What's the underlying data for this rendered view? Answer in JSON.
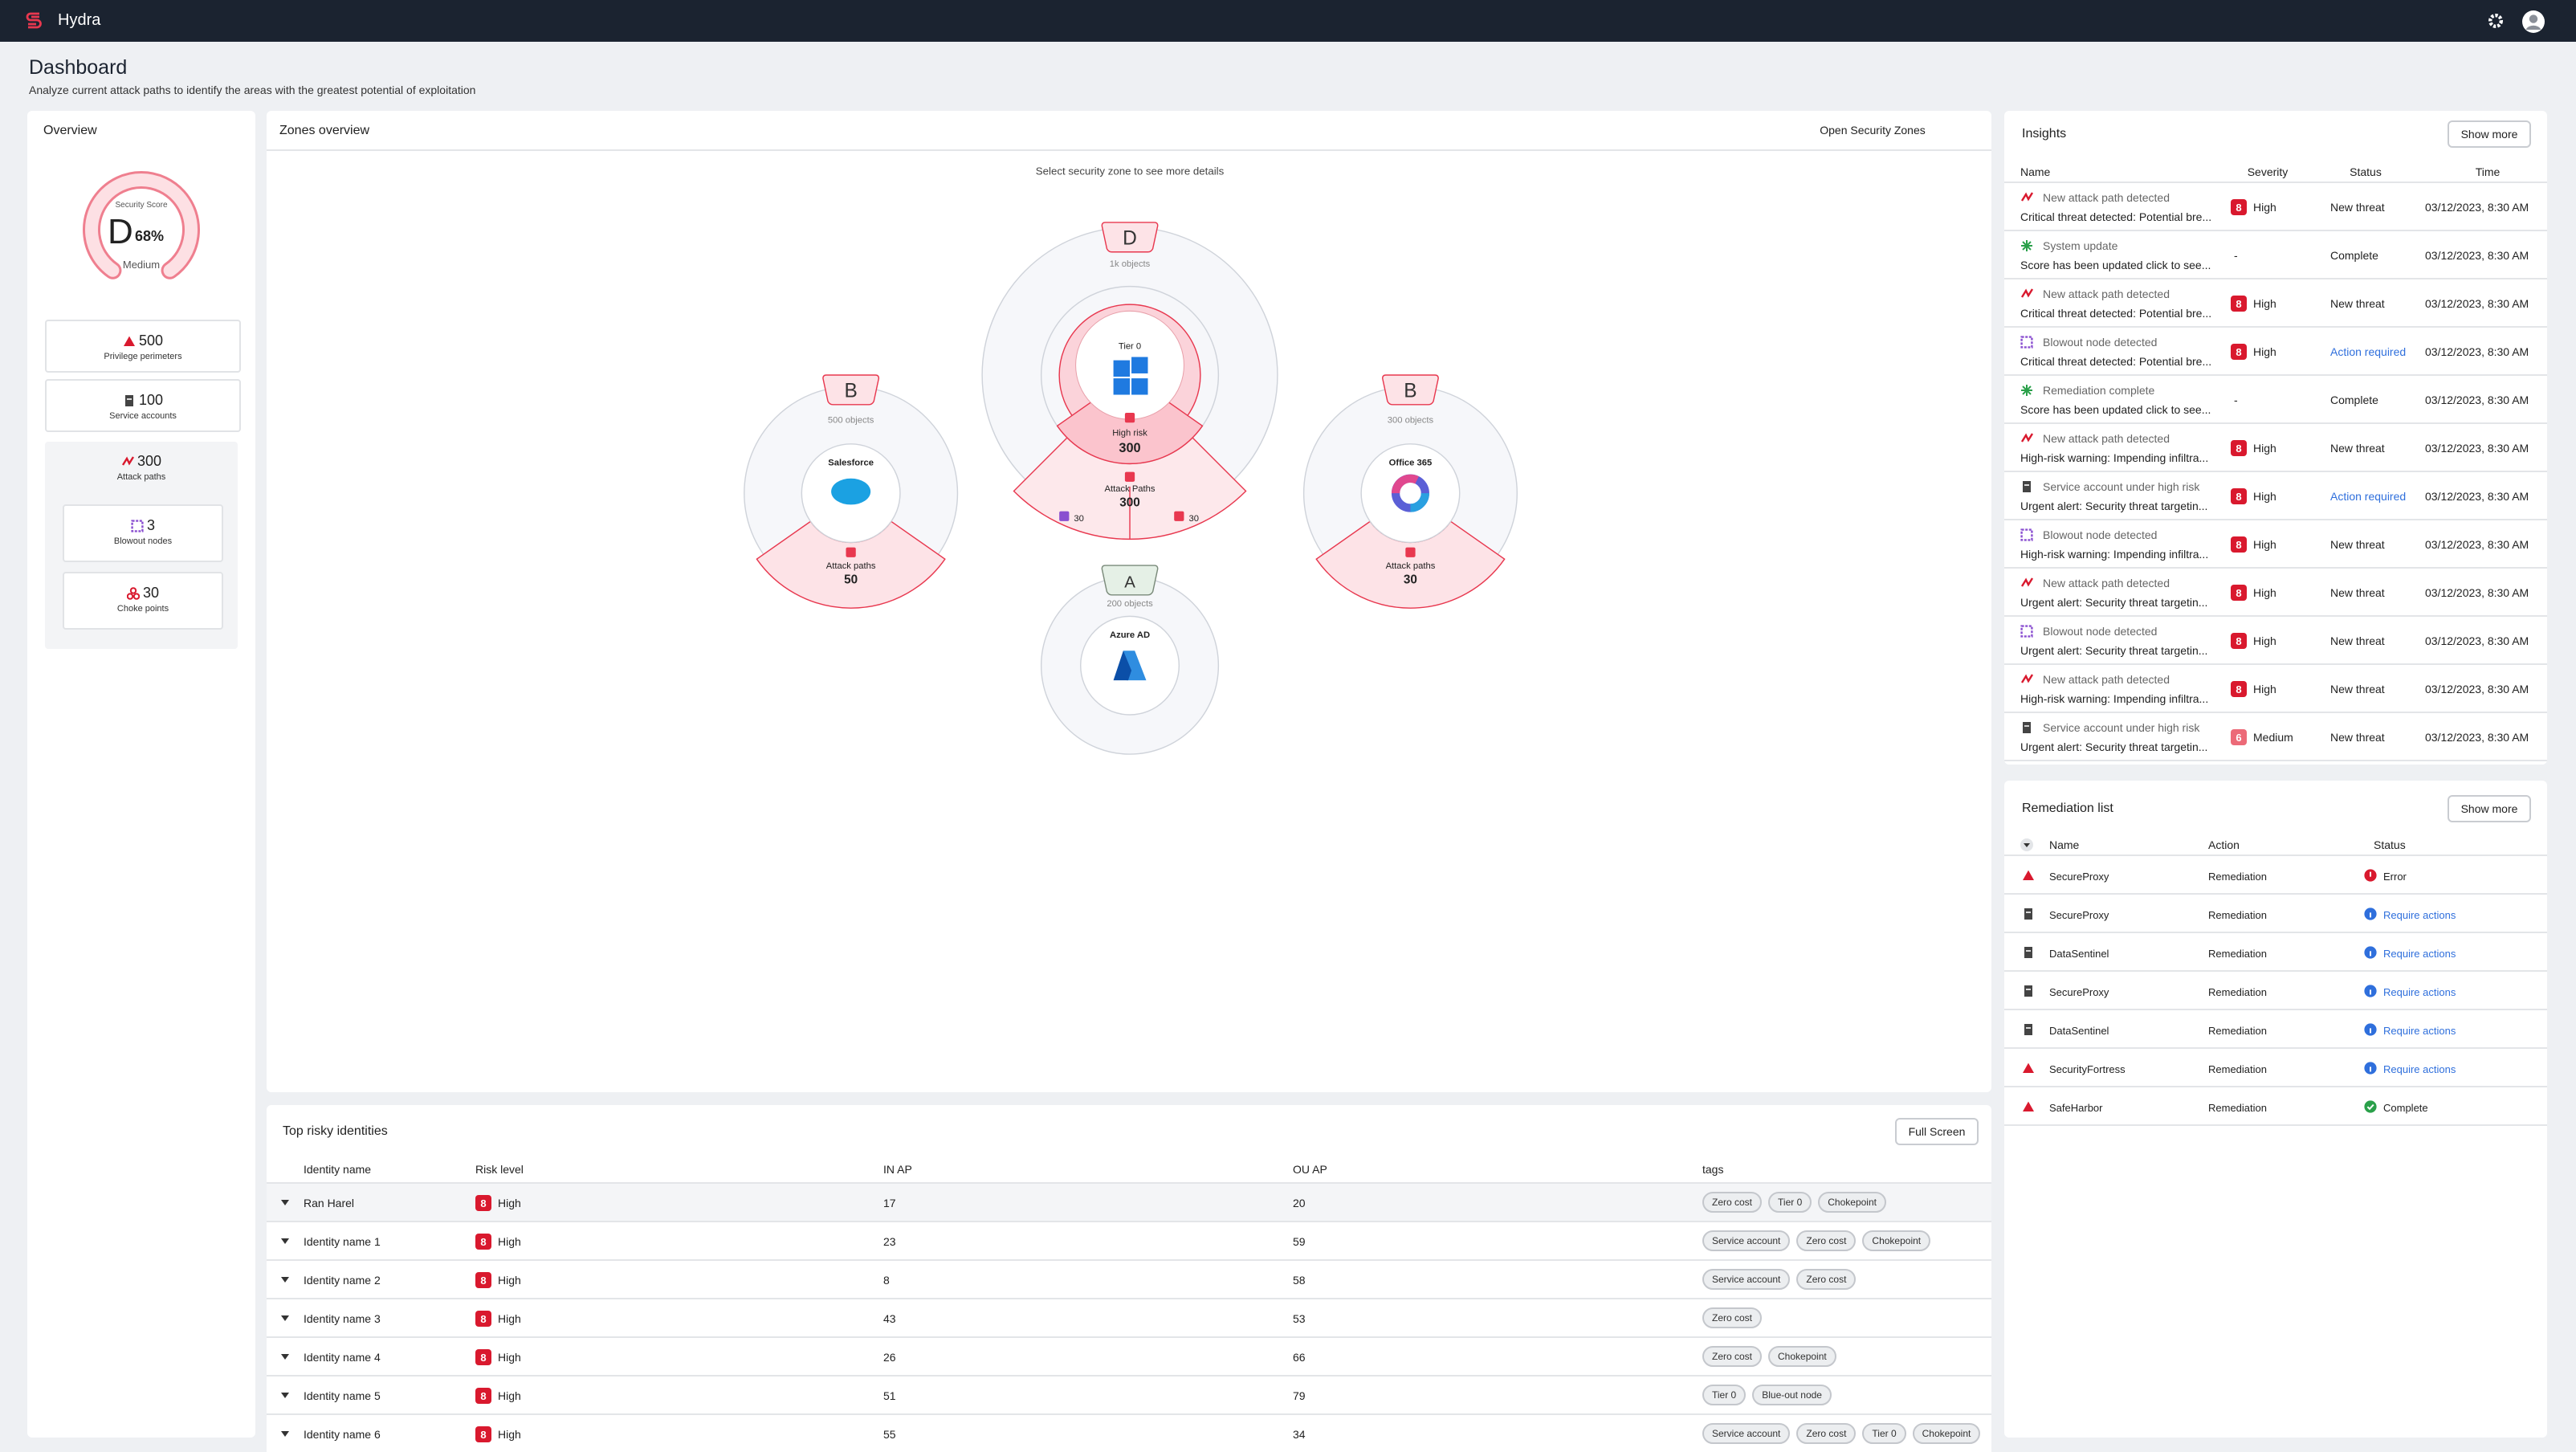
{
  "app": {
    "name": "Hydra"
  },
  "page": {
    "title": "Dashboard",
    "subtitle": "Analyze current attack paths to identify the areas with the greatest potential of exploitation"
  },
  "overview": {
    "title": "Overview",
    "score": {
      "label": "Security Score",
      "grade": "D",
      "percent": "68%",
      "level": "Medium"
    },
    "stats": [
      {
        "value": "500",
        "label": "Privilege perimeters"
      },
      {
        "value": "100",
        "label": "Service accounts"
      },
      {
        "value": "300",
        "label": "Attack paths"
      },
      {
        "value": "3",
        "label": "Blowout nodes"
      },
      {
        "value": "30",
        "label": "Choke points"
      }
    ]
  },
  "zones": {
    "title": "Zones overview",
    "action": "Open Security Zones",
    "hint": "Select security zone to see more details",
    "tier0": {
      "grade": "D",
      "objects": "1k objects",
      "name": "Tier 0",
      "risk_label": "High risk",
      "risk_value": "300",
      "paths_label": "Attack Paths",
      "paths_value": "300",
      "split": [
        "30",
        "30"
      ]
    },
    "salesforce": {
      "grade": "B",
      "objects": "500 objects",
      "name": "Salesforce",
      "paths_label": "Attack paths",
      "paths_value": "50"
    },
    "office": {
      "grade": "B",
      "objects": "300 objects",
      "name": "Office 365",
      "paths_label": "Attack paths",
      "paths_value": "30"
    },
    "azure": {
      "grade": "A",
      "objects": "200 objects",
      "name": "Azure AD"
    }
  },
  "insights": {
    "title": "Insights",
    "button": "Show more",
    "columns": [
      "Name",
      "Severity",
      "Status",
      "Time"
    ],
    "rows": [
      {
        "title": "New attack path detected",
        "description": "Critical threat detected: Potential bre...",
        "badge": "8",
        "severity": "High",
        "status": "New threat",
        "time": "03/12/2023, 8:30 AM"
      },
      {
        "title": "System update",
        "description": "Score has been updated click to see...",
        "severity": "-",
        "status": "Complete",
        "time": "03/12/2023, 8:30 AM"
      },
      {
        "title": "New attack path detected",
        "description": "Critical threat detected: Potential bre...",
        "badge": "8",
        "severity": "High",
        "status": "New threat",
        "time": "03/12/2023, 8:30 AM"
      },
      {
        "title": "Blowout node detected",
        "description": "Critical threat detected: Potential bre...",
        "badge": "8",
        "severity": "High",
        "status": "Action required",
        "time": "03/12/2023, 8:30 AM"
      },
      {
        "title": "Remediation complete",
        "description": "Score has been updated click to see...",
        "severity": "-",
        "status": "Complete",
        "time": "03/12/2023, 8:30 AM"
      },
      {
        "title": "New attack path detected",
        "description": "High-risk warning: Impending infiltra...",
        "badge": "8",
        "severity": "High",
        "status": "New threat",
        "time": "03/12/2023, 8:30 AM"
      },
      {
        "title": "Service account under high risk",
        "description": "Urgent alert: Security threat targetin...",
        "badge": "8",
        "severity": "High",
        "status": "Action required",
        "time": "03/12/2023, 8:30 AM"
      },
      {
        "title": "Blowout node detected",
        "description": "High-risk warning: Impending infiltra...",
        "badge": "8",
        "severity": "High",
        "status": "New threat",
        "time": "03/12/2023, 8:30 AM"
      },
      {
        "title": "New attack path detected",
        "description": "Urgent alert: Security threat targetin...",
        "badge": "8",
        "severity": "High",
        "status": "New threat",
        "time": "03/12/2023, 8:30 AM"
      },
      {
        "title": "Blowout node detected",
        "description": "Urgent alert: Security threat targetin...",
        "badge": "8",
        "severity": "High",
        "status": "New threat",
        "time": "03/12/2023, 8:30 AM"
      },
      {
        "title": "New attack path detected",
        "description": "High-risk warning: Impending infiltra...",
        "badge": "8",
        "severity": "High",
        "status": "New threat",
        "time": "03/12/2023, 8:30 AM"
      },
      {
        "title": "Service account under high risk",
        "description": "Urgent alert: Security threat targetin...",
        "badge": "6",
        "severity": "Medium",
        "status": "New threat",
        "time": "03/12/2023, 8:30 AM"
      }
    ]
  },
  "remediation": {
    "title": "Remediation list",
    "button": "Show more",
    "columns": [
      "Name",
      "Action",
      "Status"
    ],
    "rows": [
      {
        "name": "SecureProxy",
        "action": "Remediation",
        "status": "Error"
      },
      {
        "name": "SecureProxy",
        "action": "Remediation",
        "status": "Require actions"
      },
      {
        "name": "DataSentinel",
        "action": "Remediation",
        "status": "Require actions"
      },
      {
        "name": "SecureProxy",
        "action": "Remediation",
        "status": "Require actions"
      },
      {
        "name": "DataSentinel",
        "action": "Remediation",
        "status": "Require actions"
      },
      {
        "name": "SecurityFortress",
        "action": "Remediation",
        "status": "Require actions"
      },
      {
        "name": "SafeHarbor",
        "action": "Remediation",
        "status": "Complete"
      }
    ]
  },
  "identities": {
    "title": "Top risky identities",
    "button": "Full Screen",
    "columns": [
      "Identity name",
      "Risk level",
      "IN AP",
      "OU AP",
      "tags"
    ],
    "rows": [
      {
        "name": "Ran Harel",
        "badge": "8",
        "risk": "High",
        "in_ap": "17",
        "ou_ap": "20",
        "tags": [
          "Zero cost",
          "Tier 0",
          "Chokepoint"
        ]
      },
      {
        "name": "Identity name 1",
        "badge": "8",
        "risk": "High",
        "in_ap": "23",
        "ou_ap": "59",
        "tags": [
          "Service account",
          "Zero cost",
          "Chokepoint"
        ]
      },
      {
        "name": "Identity name 2",
        "badge": "8",
        "risk": "High",
        "in_ap": "8",
        "ou_ap": "58",
        "tags": [
          "Service account",
          "Zero cost"
        ]
      },
      {
        "name": "Identity name 3",
        "badge": "8",
        "risk": "High",
        "in_ap": "43",
        "ou_ap": "53",
        "tags": [
          "Zero cost"
        ]
      },
      {
        "name": "Identity name 4",
        "badge": "8",
        "risk": "High",
        "in_ap": "26",
        "ou_ap": "66",
        "tags": [
          "Zero cost",
          "Chokepoint"
        ]
      },
      {
        "name": "Identity name 5",
        "badge": "8",
        "risk": "High",
        "in_ap": "51",
        "ou_ap": "79",
        "tags": [
          "Tier 0",
          "Blue-out node"
        ]
      },
      {
        "name": "Identity name 6",
        "badge": "8",
        "risk": "High",
        "in_ap": "55",
        "ou_ap": "34",
        "tags": [
          "Service account",
          "Zero cost",
          "Tier 0",
          "Chokepoint"
        ]
      }
    ]
  }
}
